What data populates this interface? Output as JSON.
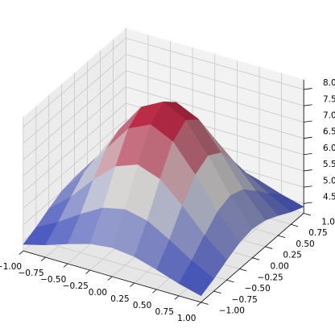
{
  "chart_data": {
    "type": "surface3d",
    "colormap": "coolwarm",
    "grid": true,
    "x": [
      -1,
      -0.75,
      -0.5,
      -0.25,
      0,
      0.25,
      0.5,
      0.75,
      1
    ],
    "y": [
      -1,
      -0.75,
      -0.5,
      -0.25,
      0,
      0.25,
      0.5,
      0.75,
      1
    ],
    "z": [
      [
        4.4,
        4.58,
        4.81,
        5.01,
        5.09,
        5.01,
        4.81,
        4.58,
        4.4
      ],
      [
        4.58,
        4.94,
        5.38,
        5.77,
        5.92,
        5.77,
        5.38,
        4.94,
        4.58
      ],
      [
        4.81,
        5.38,
        6.09,
        6.7,
        6.95,
        6.7,
        6.09,
        5.38,
        4.81
      ],
      [
        5.01,
        5.77,
        6.7,
        7.52,
        7.84,
        7.52,
        6.7,
        5.77,
        5.01
      ],
      [
        5.09,
        5.92,
        6.95,
        7.84,
        8.2,
        7.84,
        6.95,
        5.92,
        5.09
      ],
      [
        5.01,
        5.77,
        6.7,
        7.52,
        7.84,
        7.52,
        6.7,
        5.77,
        5.01
      ],
      [
        4.81,
        5.38,
        6.09,
        6.7,
        6.95,
        6.7,
        6.09,
        5.38,
        4.81
      ],
      [
        4.58,
        4.94,
        5.38,
        5.77,
        5.92,
        5.77,
        5.38,
        4.94,
        4.58
      ],
      [
        4.4,
        4.58,
        4.81,
        5.01,
        5.09,
        5.01,
        4.81,
        4.58,
        4.4
      ]
    ],
    "xlim": [
      -1,
      1
    ],
    "ylim": [
      -1,
      1
    ],
    "zlim": [
      4.2,
      8.3
    ],
    "xticks": [
      {
        "value": -1,
        "label": "−1.00"
      },
      {
        "value": -0.75,
        "label": "−0.75"
      },
      {
        "value": -0.5,
        "label": "−0.50"
      },
      {
        "value": -0.25,
        "label": "−0.25"
      },
      {
        "value": 0,
        "label": "0.00"
      },
      {
        "value": 0.25,
        "label": "0.25"
      },
      {
        "value": 0.5,
        "label": "0.50"
      },
      {
        "value": 0.75,
        "label": "0.75"
      },
      {
        "value": 1,
        "label": "1.00"
      }
    ],
    "yticks": [
      {
        "value": -1,
        "label": "−1.00"
      },
      {
        "value": -0.75,
        "label": "−0.75"
      },
      {
        "value": -0.5,
        "label": "−0.50"
      },
      {
        "value": -0.25,
        "label": "−0.25"
      },
      {
        "value": 0,
        "label": "0.00"
      },
      {
        "value": 0.25,
        "label": "0.25"
      },
      {
        "value": 0.5,
        "label": "0.50"
      },
      {
        "value": 0.75,
        "label": "0.75"
      },
      {
        "value": 1,
        "label": "1.00"
      }
    ],
    "zticks": [
      {
        "value": 4.5,
        "label": "4.5"
      },
      {
        "value": 5,
        "label": "5.0"
      },
      {
        "value": 5.5,
        "label": "5.5"
      },
      {
        "value": 6,
        "label": "6.0"
      },
      {
        "value": 6.5,
        "label": "6.5"
      },
      {
        "value": 7,
        "label": "7.0"
      },
      {
        "value": 7.5,
        "label": "7.5"
      },
      {
        "value": 8,
        "label": "8.0"
      }
    ]
  }
}
